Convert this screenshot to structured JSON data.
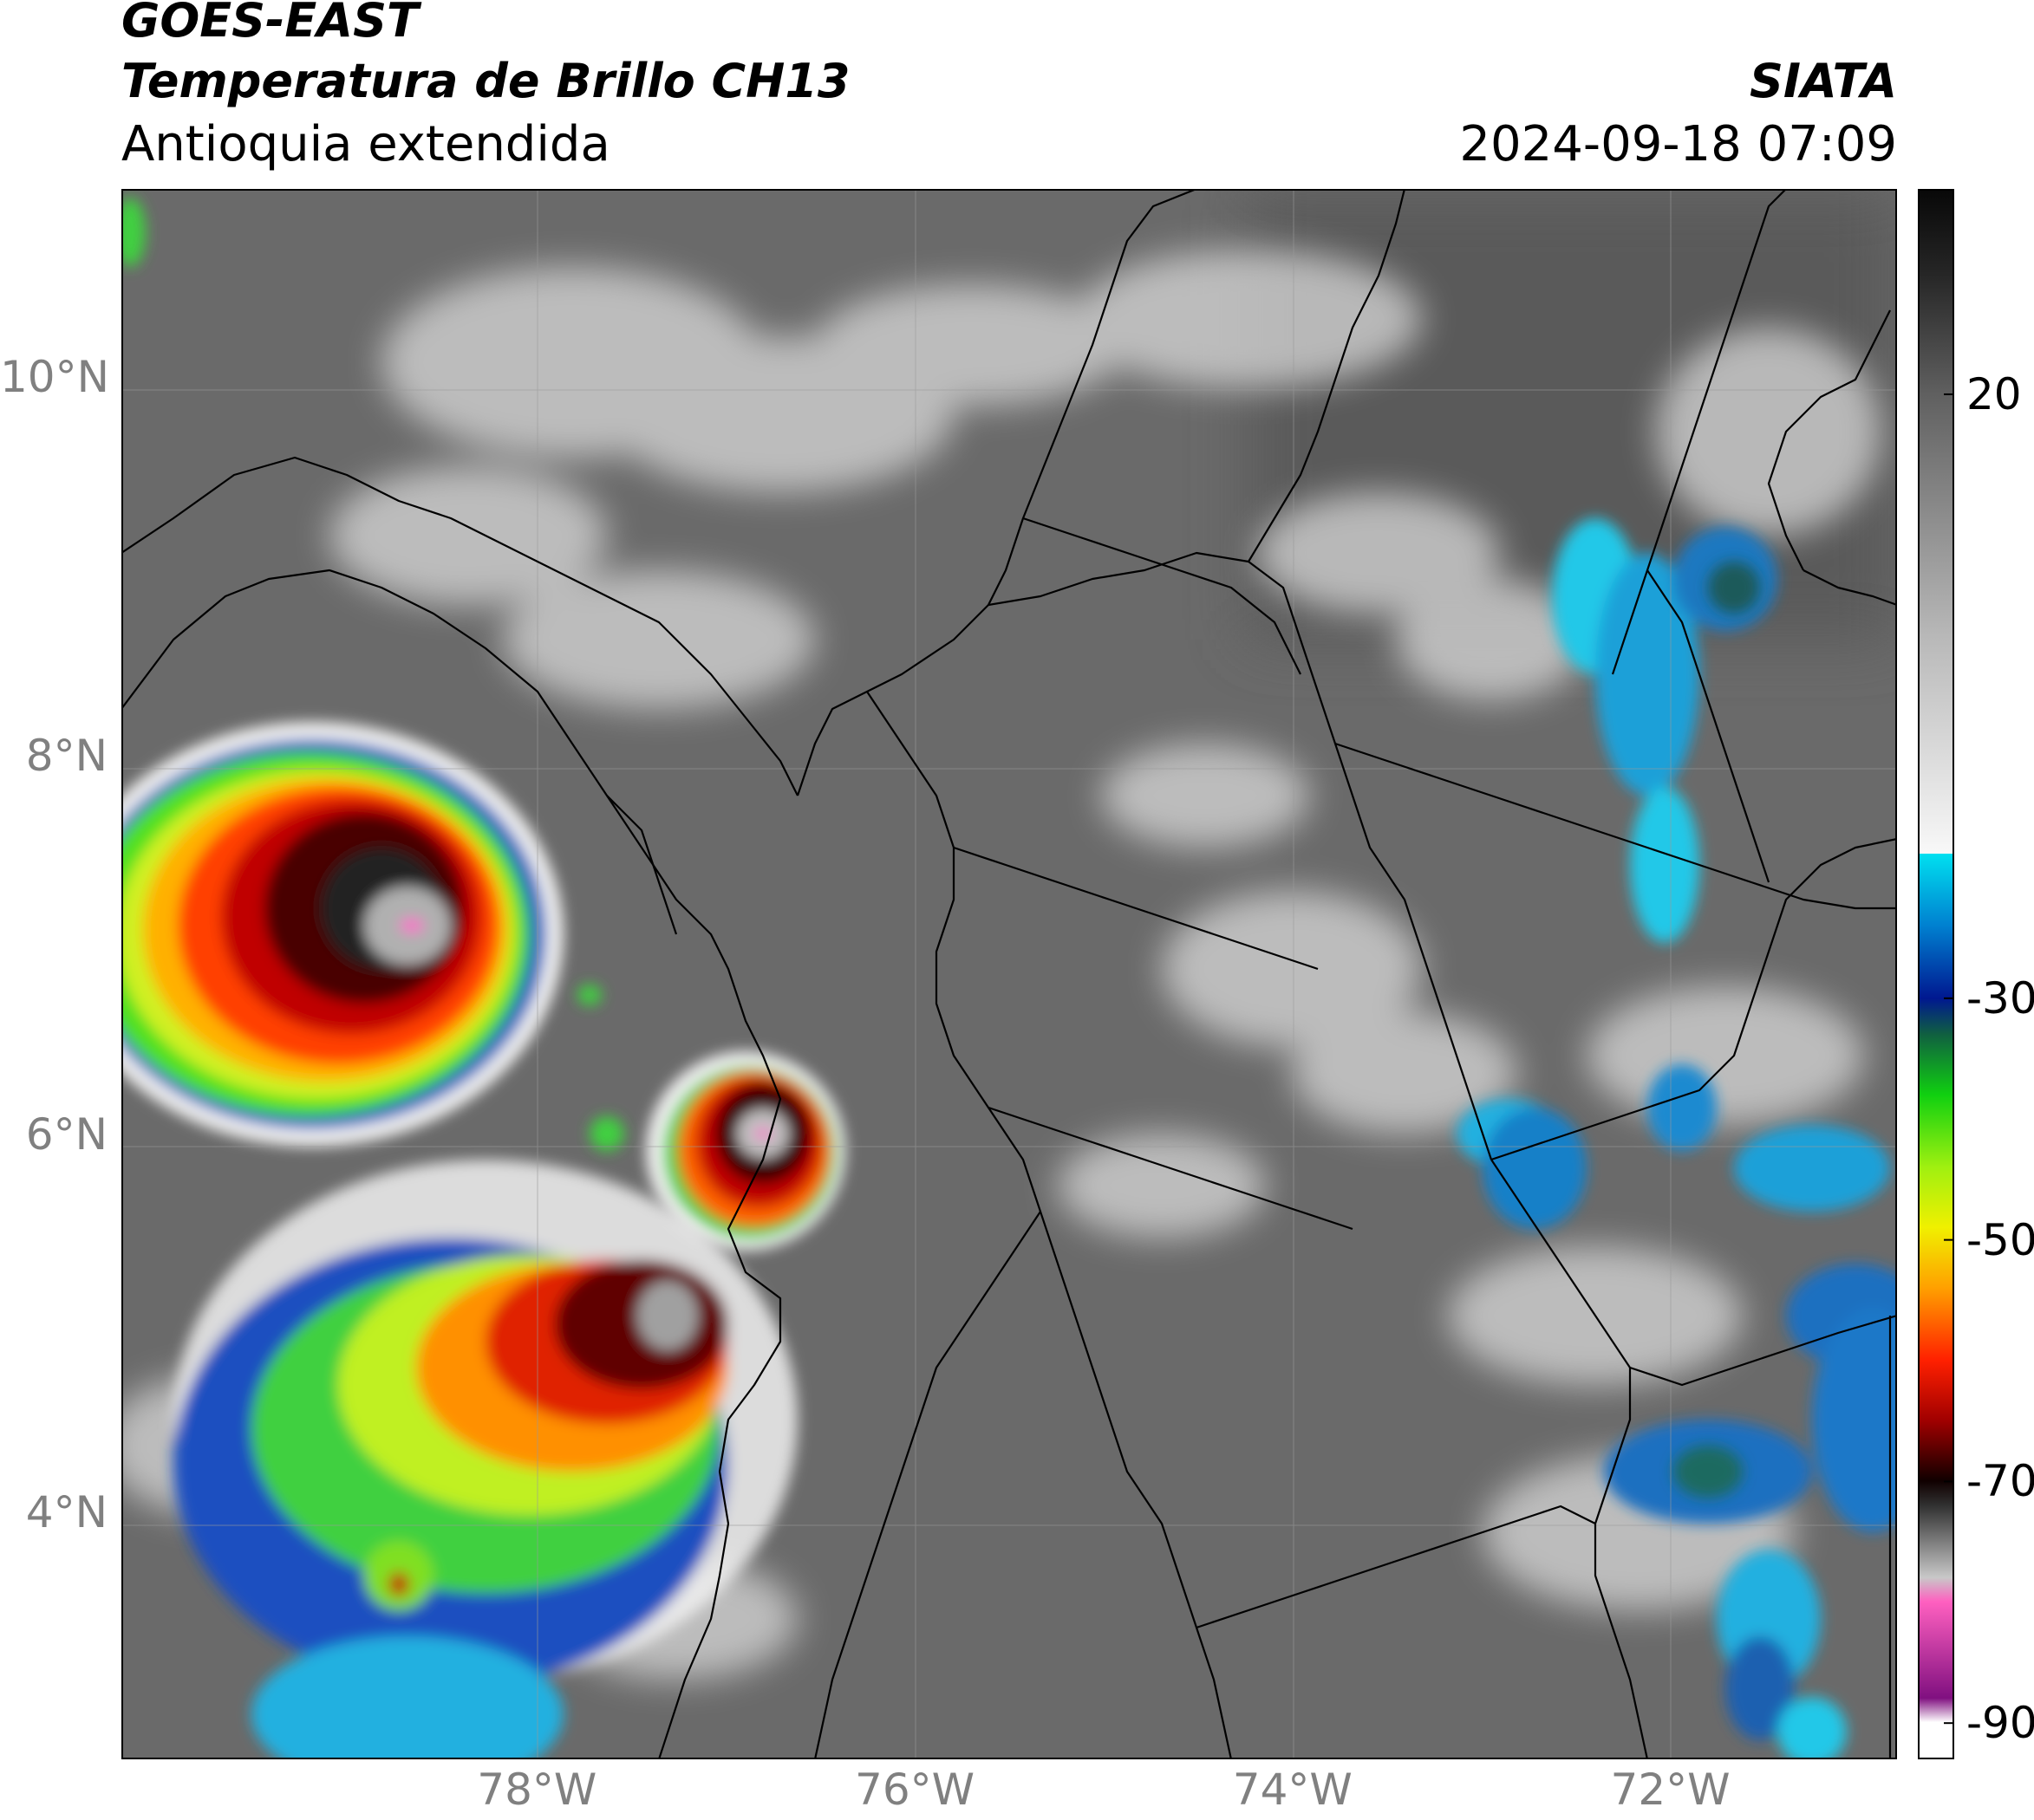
{
  "header": {
    "satellite": "GOES-EAST",
    "product": "Temperatura de Brillo CH13",
    "region": "Antioquia extendida",
    "agency": "SIATA",
    "datetime": "2024-09-18 07:09"
  },
  "map": {
    "extent": {
      "lon_min": -80.2,
      "lon_max": -70.8,
      "lat_min": 2.7,
      "lat_max": 11.0
    },
    "lat_ticks": [
      {
        "label": "10°N",
        "value": 10
      },
      {
        "label": "8°N",
        "value": 8
      },
      {
        "label": "6°N",
        "value": 6
      },
      {
        "label": "4°N",
        "value": 4
      }
    ],
    "lon_ticks": [
      {
        "label": "78°W",
        "value": -78
      },
      {
        "label": "76°W",
        "value": -76
      },
      {
        "label": "74°W",
        "value": -74
      },
      {
        "label": "72°W",
        "value": -72
      }
    ],
    "colors": {
      "background_gray": "#6a6a6a",
      "border_line": "#000000",
      "cold_core": "#330000",
      "overshoot": "#ff66cc"
    }
  },
  "colorbar": {
    "unit_hint": "",
    "ticks": [
      {
        "label": "20",
        "value": 20
      },
      {
        "label": "-30",
        "value": -30
      },
      {
        "label": "-50",
        "value": -50
      },
      {
        "label": "-70",
        "value": -70
      },
      {
        "label": "-90",
        "value": -90
      }
    ],
    "range": [
      -93,
      37
    ]
  }
}
